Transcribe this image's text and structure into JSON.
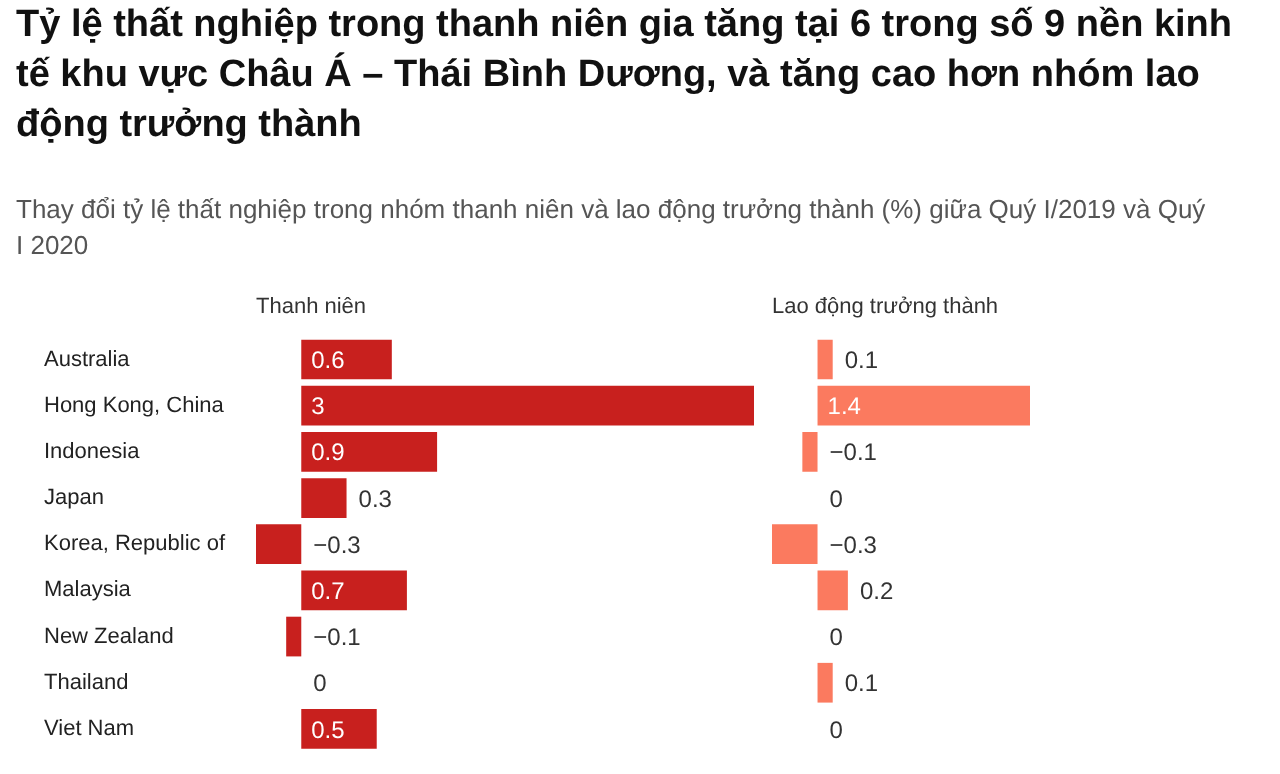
{
  "chart_data": [
    {
      "type": "bar",
      "title": "Tỷ lệ thất nghiệp trong thanh niên gia tăng tại 6 trong số 9 nền kinh tế khu vực Châu Á – Thái Bình Dương, và tăng cao hơn nhóm lao động trưởng thành",
      "subtitle": "Thay đổi tỷ lệ thất nghiệp trong nhóm thanh niên và lao động trưởng thành (%) giữa Quý I/2019 và Quý I 2020",
      "orientation": "horizontal",
      "categories": [
        "Australia",
        "Hong Kong, China",
        "Indonesia",
        "Japan",
        "Korea, Republic of",
        "Malaysia",
        "New Zealand",
        "Thailand",
        "Viet Nam"
      ],
      "series": [
        {
          "name": "Thanh niên",
          "color": "#c8201e",
          "values": [
            0.6,
            3,
            0.9,
            0.3,
            -0.3,
            0.7,
            -0.1,
            0,
            0.5
          ]
        }
      ],
      "xlim": [
        -0.3,
        3
      ],
      "data_labels": true,
      "tick_labels": "y"
    },
    {
      "type": "bar",
      "orientation": "horizontal",
      "categories": [
        null,
        null,
        null,
        null,
        null,
        null,
        null,
        null,
        null
      ],
      "series": [
        {
          "name": "Lao động trưởng thành",
          "color": "#fb7a5f",
          "values": [
            0.1,
            1.4,
            -0.1,
            0,
            -0.3,
            0.2,
            0,
            0.1,
            0
          ]
        }
      ],
      "xlim": [
        -0.3,
        1.4
      ],
      "data_labels": true,
      "tick_labels": false
    }
  ]
}
